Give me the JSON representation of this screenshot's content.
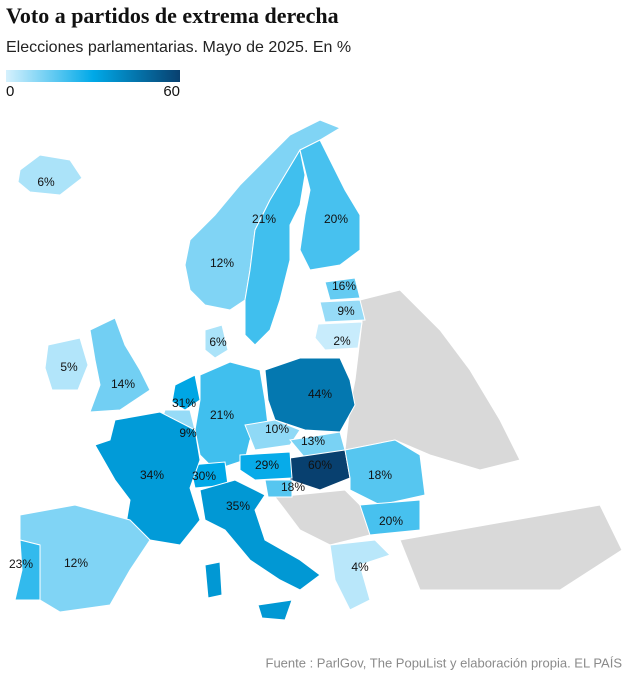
{
  "chart_data": {
    "type": "choropleth",
    "title": "Voto a partidos de extrema derecha",
    "subtitle": "Elecciones parlamentarias. Mayo de 2025. En %",
    "values": [
      6,
      12,
      21,
      20,
      16,
      9,
      2,
      6,
      5,
      14,
      31,
      9,
      21,
      44,
      10,
      13,
      60,
      29,
      30,
      34,
      18,
      35,
      18,
      20,
      4,
      12,
      23
    ],
    "value_labels": [
      "6%",
      "12%",
      "21%",
      "20%",
      "16%",
      "9%",
      "2%",
      "6%",
      "5%",
      "14%",
      "31%",
      "9%",
      "21%",
      "44%",
      "10%",
      "13%",
      "60%",
      "29%",
      "30%",
      "34%",
      "18%",
      "35%",
      "18%",
      "20%",
      "4%",
      "12%",
      "23%"
    ],
    "colorscale": {
      "range": [
        0,
        60
      ],
      "ticks": [
        0,
        60
      ],
      "colors": [
        "#d6f1fd",
        "#00a9e8",
        "#08406f"
      ]
    },
    "no_data_color": "#d9d9d9",
    "source": "Fuente : ParlGov, The PopuList y elaboración propia. EL PAÍS"
  }
}
